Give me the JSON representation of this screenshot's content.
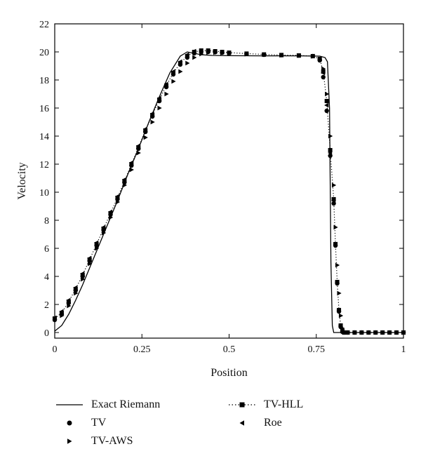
{
  "chart_data": {
    "type": "line",
    "title": "",
    "xlabel": "Position",
    "ylabel": "Velocity",
    "xlim": [
      0,
      1
    ],
    "ylim": [
      -0.4,
      22
    ],
    "xticks": [
      0,
      0.25,
      0.5,
      0.75,
      1
    ],
    "xtick_labels": [
      "0",
      "0.25",
      "0.5",
      "0.75",
      "1"
    ],
    "yticks": [
      0,
      2,
      4,
      6,
      8,
      10,
      12,
      14,
      16,
      18,
      20,
      22
    ],
    "ytick_labels": [
      "0",
      "2",
      "4",
      "6",
      "8",
      "10",
      "12",
      "14",
      "16",
      "18",
      "20",
      "22"
    ],
    "grid": false,
    "legend_position": "bottom",
    "series": [
      {
        "name": "Exact Riemann",
        "style": "solid-line",
        "color": "#000000",
        "x": [
          0,
          0.02,
          0.04,
          0.06,
          0.08,
          0.1,
          0.12,
          0.15,
          0.18,
          0.21,
          0.24,
          0.27,
          0.3,
          0.33,
          0.36,
          0.38,
          0.4,
          0.42,
          0.45,
          0.5,
          0.6,
          0.7,
          0.76,
          0.775,
          0.782,
          0.788,
          0.792,
          0.796,
          0.8,
          1
        ],
        "y": [
          0.1,
          0.5,
          1.3,
          2.3,
          3.4,
          4.6,
          5.8,
          7.6,
          9.4,
          11.3,
          13.1,
          15.0,
          16.8,
          18.5,
          19.7,
          20.0,
          19.9,
          19.8,
          19.75,
          19.73,
          19.72,
          19.72,
          19.7,
          19.6,
          19.3,
          16.0,
          5.0,
          0.5,
          0,
          0
        ]
      },
      {
        "name": "TV-HLL",
        "style": "dotted-line-square-markers",
        "color": "#000000",
        "x": [
          0,
          0.02,
          0.04,
          0.06,
          0.08,
          0.1,
          0.12,
          0.14,
          0.16,
          0.18,
          0.2,
          0.22,
          0.24,
          0.26,
          0.28,
          0.3,
          0.32,
          0.34,
          0.36,
          0.38,
          0.4,
          0.42,
          0.44,
          0.46,
          0.48,
          0.5,
          0.55,
          0.6,
          0.65,
          0.7,
          0.74,
          0.76,
          0.77,
          0.78,
          0.79,
          0.8,
          0.805,
          0.81,
          0.815,
          0.82,
          0.825,
          0.83,
          0.84,
          0.86,
          0.88,
          0.9,
          0.92,
          0.94,
          0.96,
          0.98,
          1
        ],
        "y": [
          1.0,
          1.4,
          2.2,
          3.1,
          4.1,
          5.2,
          6.3,
          7.4,
          8.5,
          9.6,
          10.8,
          12.0,
          13.2,
          14.4,
          15.5,
          16.6,
          17.6,
          18.5,
          19.2,
          19.7,
          20.0,
          20.1,
          20.1,
          20.05,
          20.0,
          19.95,
          19.88,
          19.82,
          19.78,
          19.75,
          19.7,
          19.5,
          18.6,
          16.5,
          13.0,
          9.5,
          6.3,
          3.6,
          1.6,
          0.5,
          0.1,
          0,
          0,
          0,
          0,
          0,
          0,
          0,
          0,
          0,
          0
        ]
      },
      {
        "name": "TV",
        "style": "circle-markers",
        "color": "#000000",
        "x": [
          0,
          0.02,
          0.04,
          0.06,
          0.08,
          0.1,
          0.12,
          0.14,
          0.16,
          0.18,
          0.2,
          0.22,
          0.24,
          0.26,
          0.28,
          0.3,
          0.32,
          0.34,
          0.36,
          0.38,
          0.4,
          0.42,
          0.44,
          0.46,
          0.48,
          0.5,
          0.55,
          0.6,
          0.65,
          0.7,
          0.74,
          0.76,
          0.77,
          0.78,
          0.79,
          0.8,
          0.805,
          0.81,
          0.815,
          0.82,
          0.825,
          0.83,
          0.84,
          0.86,
          0.88,
          0.9,
          0.92,
          0.94,
          0.96,
          0.98,
          1
        ],
        "y": [
          0.9,
          1.3,
          2.1,
          3.0,
          4.0,
          5.1,
          6.2,
          7.3,
          8.4,
          9.5,
          10.7,
          11.9,
          13.1,
          14.3,
          15.4,
          16.5,
          17.5,
          18.4,
          19.1,
          19.6,
          19.9,
          20.0,
          20.0,
          19.98,
          19.95,
          19.92,
          19.86,
          19.8,
          19.77,
          19.74,
          19.7,
          19.4,
          18.2,
          15.8,
          12.6,
          9.2,
          6.2,
          3.5,
          1.5,
          0.4,
          0.05,
          0,
          0,
          0,
          0,
          0,
          0,
          0,
          0,
          0,
          0
        ]
      },
      {
        "name": "TV-AWS",
        "style": "triangle-right-markers",
        "color": "#000000",
        "x": [
          0,
          0.02,
          0.04,
          0.06,
          0.08,
          0.1,
          0.12,
          0.14,
          0.16,
          0.18,
          0.2,
          0.22,
          0.24,
          0.26,
          0.28,
          0.3,
          0.32,
          0.34,
          0.36,
          0.38,
          0.4,
          0.42,
          0.44,
          0.46,
          0.48,
          0.5,
          0.55,
          0.6,
          0.65,
          0.7,
          0.74,
          0.76,
          0.77,
          0.78,
          0.79,
          0.8,
          0.805,
          0.81,
          0.815,
          0.82,
          0.825,
          0.83,
          0.84,
          0.86,
          0.88,
          0.9,
          0.92,
          0.94,
          0.96,
          0.98,
          1
        ],
        "y": [
          0.95,
          1.2,
          1.9,
          2.8,
          3.8,
          4.9,
          6.0,
          7.1,
          8.2,
          9.3,
          10.5,
          11.6,
          12.8,
          13.9,
          15.0,
          16.0,
          17.0,
          17.9,
          18.6,
          19.2,
          19.6,
          19.85,
          19.95,
          19.95,
          19.92,
          19.9,
          19.84,
          19.8,
          19.76,
          19.73,
          19.68,
          19.45,
          18.8,
          17.0,
          14.0,
          10.5,
          7.5,
          4.8,
          2.8,
          1.2,
          0.3,
          0,
          0,
          0,
          0,
          0,
          0,
          0,
          0,
          0,
          0
        ]
      },
      {
        "name": "Roe",
        "style": "triangle-left-markers",
        "color": "#000000",
        "x": [
          0,
          0.02,
          0.04,
          0.06,
          0.08,
          0.1,
          0.12,
          0.14,
          0.16,
          0.18,
          0.2,
          0.22,
          0.24,
          0.26,
          0.28,
          0.3,
          0.32,
          0.34,
          0.36,
          0.38,
          0.4,
          0.42,
          0.44,
          0.46,
          0.48,
          0.5,
          0.55,
          0.6,
          0.65,
          0.7,
          0.74,
          0.76,
          0.77,
          0.78,
          0.79,
          0.8,
          0.805,
          0.81,
          0.815,
          0.82,
          0.825,
          0.83,
          0.84,
          0.86,
          0.88,
          0.9,
          0.92,
          0.94,
          0.96,
          0.98,
          1
        ],
        "y": [
          1.05,
          1.5,
          2.3,
          3.2,
          4.2,
          5.3,
          6.4,
          7.5,
          8.6,
          9.7,
          10.9,
          12.1,
          13.3,
          14.5,
          15.6,
          16.7,
          17.7,
          18.6,
          19.3,
          19.8,
          20.05,
          20.1,
          20.08,
          20.03,
          19.98,
          19.93,
          19.87,
          19.81,
          19.77,
          19.74,
          19.7,
          19.5,
          18.5,
          16.2,
          12.8,
          9.4,
          6.3,
          3.6,
          1.6,
          0.5,
          0.1,
          0,
          0,
          0,
          0,
          0,
          0,
          0,
          0,
          0,
          0
        ]
      }
    ]
  },
  "legend": {
    "items": [
      {
        "label": "Exact Riemann",
        "marker": "solid-line"
      },
      {
        "label": "TV-HLL",
        "marker": "dotted-line-square"
      },
      {
        "label": "TV",
        "marker": "circle"
      },
      {
        "label": "Roe",
        "marker": "triangle-left"
      },
      {
        "label": "TV-AWS",
        "marker": "triangle-right"
      }
    ]
  }
}
